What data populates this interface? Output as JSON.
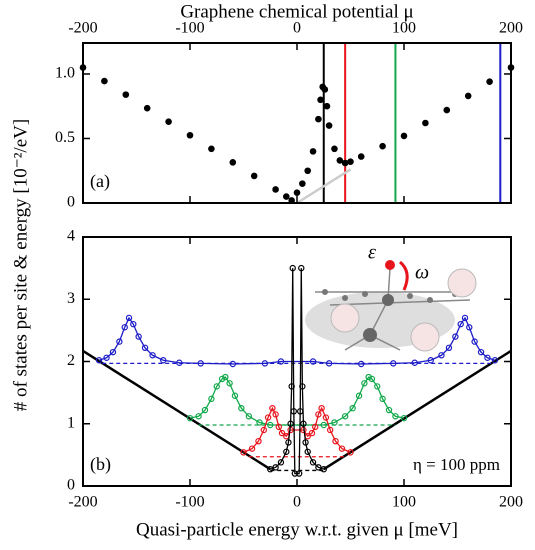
{
  "chart_data": [
    {
      "type": "line",
      "title": "Graphene chemical potential μ",
      "annotation": "(a)",
      "xlim": [
        -200,
        200
      ],
      "xticks": [
        -200,
        -100,
        0,
        100,
        200
      ],
      "ylim": [
        0,
        1.24
      ],
      "yticks": [
        0,
        0.5,
        {
          "value": 1,
          "label": "1.0"
        }
      ],
      "vlines": [
        {
          "x": 25,
          "color": "#000000"
        },
        {
          "x": 45,
          "color": "#e8141c"
        },
        {
          "x": 92,
          "color": "#10a84a"
        },
        {
          "x": 190,
          "color": "#1c1cc8"
        }
      ],
      "series": [
        {
          "color": "#cccccc",
          "style": "line",
          "x": [
            0,
            50
          ],
          "values": [
            0,
            0.26
          ]
        },
        {
          "color": "#000000",
          "style": "dots",
          "x": [
            -200,
            -180,
            -160,
            -140,
            -120,
            -100,
            -80,
            -60,
            -40,
            -20,
            -10,
            -5,
            0,
            5,
            10,
            15,
            20,
            22,
            24,
            26,
            28,
            30,
            35,
            40,
            45,
            50,
            60,
            80,
            100,
            120,
            140,
            160,
            180,
            200
          ],
          "values": [
            1.05,
            0.945,
            0.84,
            0.735,
            0.63,
            0.525,
            0.42,
            0.315,
            0.21,
            0.105,
            0.05,
            0.02,
            0.08,
            0.15,
            0.25,
            0.4,
            0.65,
            0.8,
            0.9,
            0.88,
            0.75,
            0.6,
            0.42,
            0.33,
            0.31,
            0.32,
            0.36,
            0.44,
            0.52,
            0.62,
            0.72,
            0.83,
            0.94,
            1.05
          ]
        }
      ]
    },
    {
      "type": "line",
      "xlabel": "Quasi-particle energy w.r.t. given μ [meV]",
      "ylabel": "# of states per site & energy [10⁻²/eV]",
      "annotations": [
        "(b)",
        "η = 100 ppm"
      ],
      "inset": {
        "epsilon": "ε",
        "omega": "ω"
      },
      "xlim": [
        -200,
        200
      ],
      "xticks": [
        -200,
        -100,
        0,
        100,
        200
      ],
      "ylim": [
        0,
        4
      ],
      "yticks": [
        0,
        1,
        2,
        3,
        4
      ],
      "series": [
        {
          "color": "#000000",
          "style": "line",
          "x": [
            -200,
            -25
          ],
          "values": [
            2.17,
            0.27
          ]
        },
        {
          "color": "#000000",
          "style": "line",
          "x": [
            25,
            200
          ],
          "values": [
            0.27,
            2.17
          ]
        },
        {
          "color": "#1c1cc8",
          "style": "dashed",
          "x": [
            -182,
            182
          ],
          "values": [
            1.97,
            1.97
          ]
        },
        {
          "color": "#10a84a",
          "style": "dashed",
          "x": [
            -92,
            92
          ],
          "values": [
            0.98,
            0.98
          ]
        },
        {
          "color": "#e8141c",
          "style": "dashed",
          "x": [
            -45,
            45
          ],
          "values": [
            0.47,
            0.47
          ]
        },
        {
          "color": "#000000",
          "style": "dashed",
          "x": [
            -25,
            25
          ],
          "values": [
            0.25,
            0.25
          ]
        },
        {
          "color": "#1c1cc8",
          "style": "markers",
          "x": [
            -185,
            -178,
            -172,
            -166,
            -161,
            -157,
            -153,
            -148,
            -142,
            -135,
            -125,
            -110,
            -90,
            -60,
            -30,
            -15,
            15,
            30,
            60,
            90,
            110,
            125,
            135,
            142,
            148,
            153,
            157,
            161,
            166,
            172,
            178,
            185
          ],
          "values": [
            2.02,
            2.06,
            2.15,
            2.32,
            2.55,
            2.7,
            2.6,
            2.4,
            2.22,
            2.1,
            2.02,
            1.98,
            1.97,
            1.96,
            1.97,
            2.0,
            2.0,
            1.97,
            1.96,
            1.97,
            1.98,
            2.02,
            2.1,
            2.22,
            2.4,
            2.6,
            2.7,
            2.55,
            2.32,
            2.15,
            2.06,
            2.02
          ]
        },
        {
          "color": "#10a84a",
          "style": "markers",
          "x": [
            -100,
            -92,
            -86,
            -80,
            -75,
            -70,
            -67,
            -63,
            -58,
            -52,
            -45,
            -35,
            -25,
            25,
            35,
            45,
            52,
            58,
            63,
            67,
            70,
            75,
            80,
            86,
            92,
            100
          ],
          "values": [
            1.09,
            1.12,
            1.22,
            1.4,
            1.6,
            1.72,
            1.75,
            1.65,
            1.45,
            1.25,
            1.12,
            1.02,
            0.98,
            0.98,
            1.02,
            1.12,
            1.25,
            1.45,
            1.65,
            1.75,
            1.72,
            1.6,
            1.4,
            1.22,
            1.12,
            1.09
          ]
        },
        {
          "color": "#e8141c",
          "style": "markers",
          "x": [
            -50,
            -42,
            -36,
            -31,
            -27,
            -23,
            -20,
            -17,
            -14,
            -10,
            -6,
            6,
            10,
            14,
            17,
            20,
            23,
            27,
            31,
            36,
            42,
            50
          ],
          "values": [
            0.54,
            0.6,
            0.72,
            0.9,
            1.1,
            1.25,
            1.15,
            0.95,
            0.85,
            0.8,
            0.9,
            0.9,
            0.8,
            0.85,
            0.95,
            1.15,
            1.25,
            1.1,
            0.9,
            0.72,
            0.6,
            0.54
          ]
        },
        {
          "color": "#000000",
          "style": "markers",
          "x": [
            -25,
            -20,
            -15,
            -10,
            -8,
            -6,
            -5,
            -4,
            -3,
            -2,
            2,
            3,
            4,
            5,
            6,
            8,
            10,
            15,
            20,
            25
          ],
          "values": [
            0.27,
            0.3,
            0.38,
            0.55,
            0.7,
            1.0,
            1.6,
            3.5,
            1.2,
            0.2,
            0.2,
            1.2,
            3.5,
            1.6,
            1.0,
            0.7,
            0.55,
            0.38,
            0.3,
            0.27
          ]
        }
      ]
    }
  ]
}
